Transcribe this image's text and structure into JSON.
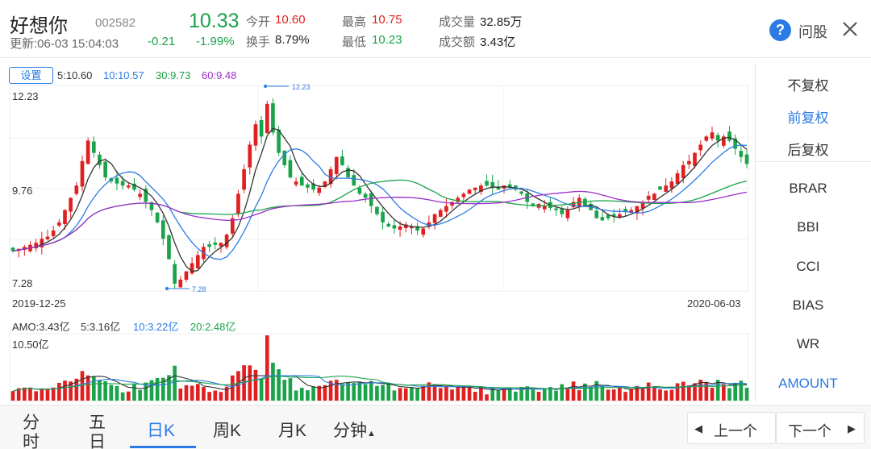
{
  "header": {
    "name": "好想你",
    "code": "002582",
    "update_time": "更新:06-03 15:04:03",
    "price": "10.33",
    "change": "-0.21",
    "change_pct": "-1.99%",
    "open_label": "今开",
    "open_value": "10.60",
    "turnover_label": "换手",
    "turnover_value": "8.79%",
    "high_label": "最高",
    "high_value": "10.75",
    "low_label": "最低",
    "low_value": "10.23",
    "volume_label": "成交量",
    "volume_value": "32.85万",
    "amount_label": "成交额",
    "amount_value": "3.43亿",
    "help_icon_text": "?",
    "wengu_label": "问股",
    "colors": {
      "up": "#e02020",
      "down": "#1aa34a",
      "accent": "#2c7be5"
    }
  },
  "chart": {
    "settings_label": "设置",
    "ma_labels": [
      {
        "text": "5:10.60",
        "color": "#333333"
      },
      {
        "text": "10:10.57",
        "color": "#2c7be5"
      },
      {
        "text": "30:9.73",
        "color": "#1aa34a"
      },
      {
        "text": "60:9.48",
        "color": "#9b30c8"
      }
    ],
    "y_top_label": "12.23",
    "y_mid_label": "9.76",
    "y_bottom_label": "7.28",
    "max_marker": "12.23",
    "min_marker": "7.28",
    "start_date": "2019-12-25",
    "end_date": "2020-06-03",
    "volume_labels": [
      {
        "text": "AMO:3.43亿",
        "color": "#333333"
      },
      {
        "text": "5:3.16亿",
        "color": "#333333"
      },
      {
        "text": "10:3.22亿",
        "color": "#2c7be5"
      },
      {
        "text": "20:2.48亿",
        "color": "#1aa34a"
      }
    ],
    "volume_max_label": "10.50亿"
  },
  "chart_data": {
    "type": "candlestick",
    "x_start": "2019-12-25",
    "x_end": "2020-06-03",
    "ylim": [
      7.28,
      12.23
    ],
    "close": [
      8.2,
      8.25,
      8.3,
      8.35,
      8.4,
      8.5,
      8.55,
      8.7,
      8.9,
      9.2,
      9.5,
      9.8,
      10.4,
      10.9,
      10.6,
      10.3,
      10.0,
      9.9,
      9.85,
      9.8,
      9.8,
      9.7,
      9.6,
      9.4,
      9.2,
      8.9,
      8.5,
      8.0,
      7.4,
      7.5,
      7.7,
      7.9,
      8.1,
      8.3,
      8.3,
      8.35,
      8.4,
      8.6,
      9.0,
      9.6,
      10.2,
      10.8,
      11.3,
      11.0,
      11.8,
      11.1,
      10.6,
      10.3,
      10.0,
      9.9,
      9.8,
      9.75,
      9.7,
      9.75,
      9.9,
      10.2,
      10.5,
      10.3,
      10.0,
      9.8,
      9.6,
      9.5,
      9.3,
      9.1,
      8.9,
      8.8,
      8.75,
      8.8,
      8.85,
      8.8,
      8.7,
      8.75,
      8.9,
      9.1,
      9.2,
      9.3,
      9.4,
      9.5,
      9.6,
      9.7,
      9.75,
      9.8,
      9.8,
      9.75,
      9.7,
      9.8,
      9.75,
      9.7,
      9.6,
      9.4,
      9.3,
      9.35,
      9.3,
      9.25,
      9.2,
      9.1,
      9.2,
      9.4,
      9.5,
      9.3,
      9.2,
      9.0,
      8.95,
      9.0,
      9.05,
      9.1,
      9.15,
      9.2,
      9.3,
      9.4,
      9.55,
      9.6,
      9.7,
      9.8,
      9.9,
      10.1,
      10.3,
      10.4,
      10.6,
      10.8,
      11.0,
      11.1,
      10.9,
      11.0,
      10.9,
      10.7,
      10.5,
      10.33
    ],
    "ma_series": [
      {
        "name": "5",
        "color": "#333333"
      },
      {
        "name": "10",
        "color": "#2c7be5"
      },
      {
        "name": "30",
        "color": "#1aa34a"
      },
      {
        "name": "60",
        "color": "#9b30c8"
      }
    ],
    "volume_ylim": [
      0,
      10.5
    ]
  },
  "right_panel": {
    "items": [
      "不复权",
      "前复权",
      "后复权",
      "BRAR",
      "BBI",
      "CCI",
      "BIAS",
      "WR",
      "AMOUNT"
    ],
    "active_adjust": "前复权",
    "active_indicator": "AMOUNT"
  },
  "tabs": {
    "items": [
      "分时",
      "五日",
      "日K",
      "周K",
      "月K",
      "分钟"
    ],
    "active": "日K",
    "prev_label": "上一个",
    "next_label": "下一个"
  }
}
